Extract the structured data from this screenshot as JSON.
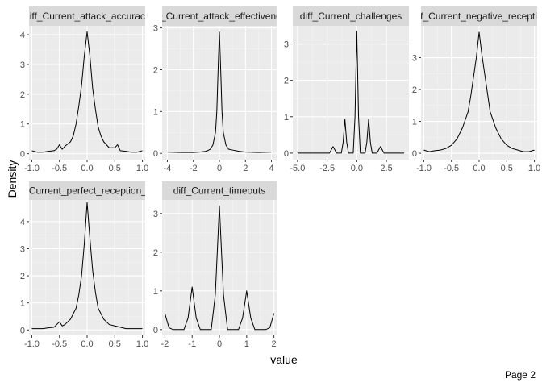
{
  "page": {
    "label": "Page 2"
  },
  "chart_data": {
    "type": "line",
    "xlabel": "value",
    "ylabel": "Density",
    "colors": {
      "panel_bg": "#ebebeb",
      "grid_major": "#ffffff",
      "strip_bg": "#d9d9d9",
      "line": "#000000"
    },
    "panels": [
      {
        "strip_label": "diff_Current_attack_accuracy",
        "xlim": [
          -1.05,
          1.05
        ],
        "ylim": [
          -0.2,
          4.3
        ],
        "xticks": [
          -1.0,
          -0.5,
          0.0,
          0.5,
          1.0
        ],
        "xtick_labels": [
          "-1.0",
          "-0.5",
          "0.0",
          "0.5",
          "1.0"
        ],
        "yticks": [
          0,
          1,
          2,
          3,
          4
        ],
        "ytick_labels": [
          "0",
          "1",
          "2",
          "3",
          "4"
        ],
        "x": [
          -1.0,
          -0.9,
          -0.8,
          -0.7,
          -0.6,
          -0.55,
          -0.5,
          -0.45,
          -0.4,
          -0.3,
          -0.25,
          -0.2,
          -0.15,
          -0.1,
          -0.05,
          0.0,
          0.05,
          0.1,
          0.15,
          0.2,
          0.25,
          0.3,
          0.4,
          0.5,
          0.55,
          0.6,
          0.7,
          0.8,
          0.9,
          1.0
        ],
        "y": [
          0.1,
          0.05,
          0.05,
          0.08,
          0.1,
          0.15,
          0.3,
          0.15,
          0.25,
          0.4,
          0.6,
          1.0,
          1.6,
          2.3,
          3.3,
          4.1,
          3.3,
          2.2,
          1.5,
          0.9,
          0.6,
          0.4,
          0.2,
          0.2,
          0.3,
          0.1,
          0.08,
          0.05,
          0.05,
          0.1
        ]
      },
      {
        "strip_label": "diff_Current_attack_effectiveness",
        "xlim": [
          -4.4,
          4.4
        ],
        "ylim": [
          -0.15,
          3.05
        ],
        "xticks": [
          -4,
          -2,
          0,
          2,
          4
        ],
        "xtick_labels": [
          "-4",
          "-2",
          "0",
          "2",
          "4"
        ],
        "yticks": [
          0,
          1,
          2,
          3
        ],
        "ytick_labels": [
          "0",
          "1",
          "2",
          "3"
        ],
        "x": [
          -4.0,
          -3.0,
          -2.0,
          -1.5,
          -1.0,
          -0.7,
          -0.5,
          -0.3,
          -0.2,
          -0.1,
          0.0,
          0.1,
          0.2,
          0.3,
          0.5,
          0.7,
          1.0,
          1.5,
          2.0,
          3.0,
          4.0
        ],
        "y": [
          0.03,
          0.02,
          0.02,
          0.03,
          0.05,
          0.1,
          0.2,
          0.5,
          1.0,
          2.0,
          2.9,
          2.0,
          1.0,
          0.5,
          0.2,
          0.1,
          0.08,
          0.05,
          0.03,
          0.02,
          0.03
        ]
      },
      {
        "strip_label": "diff_Current_challenges",
        "xlim": [
          -5.4,
          4.4
        ],
        "ylim": [
          -0.18,
          3.5
        ],
        "xticks": [
          -5.0,
          -2.5,
          0.0,
          2.5
        ],
        "xtick_labels": [
          "-5.0",
          "-2.5",
          "0.0",
          "2.5"
        ],
        "yticks": [
          0,
          1,
          2,
          3
        ],
        "ytick_labels": [
          "0",
          "1",
          "2",
          "3"
        ],
        "x": [
          -5.0,
          -3.0,
          -2.3,
          -2.0,
          -1.7,
          -1.3,
          -1.15,
          -1.0,
          -0.85,
          -0.7,
          -0.3,
          -0.15,
          0.0,
          0.15,
          0.3,
          0.7,
          0.85,
          1.0,
          1.15,
          1.3,
          1.7,
          2.0,
          2.3,
          3.0,
          4.0
        ],
        "y": [
          0.0,
          0.0,
          0.0,
          0.18,
          0.0,
          0.0,
          0.3,
          0.93,
          0.3,
          0.0,
          0.0,
          1.0,
          3.35,
          1.0,
          0.0,
          0.0,
          0.3,
          0.93,
          0.3,
          0.0,
          0.0,
          0.18,
          0.0,
          0.0,
          0.0
        ]
      },
      {
        "strip_label": "diff_Current_negative_reception",
        "xlim": [
          -1.05,
          1.05
        ],
        "ylim": [
          -0.2,
          4.0
        ],
        "xticks": [
          -1.0,
          -0.5,
          0.0,
          0.5,
          1.0
        ],
        "xtick_labels": [
          "-1.0",
          "-0.5",
          "0.0",
          "0.5",
          "1.0"
        ],
        "yticks": [
          0,
          1,
          2,
          3
        ],
        "ytick_labels": [
          "0",
          "1",
          "2",
          "3"
        ],
        "x": [
          -1.0,
          -0.9,
          -0.8,
          -0.7,
          -0.6,
          -0.5,
          -0.4,
          -0.3,
          -0.2,
          -0.15,
          -0.1,
          -0.05,
          0.0,
          0.05,
          0.1,
          0.15,
          0.2,
          0.3,
          0.4,
          0.5,
          0.6,
          0.7,
          0.8,
          0.9,
          1.0
        ],
        "y": [
          0.1,
          0.05,
          0.08,
          0.1,
          0.15,
          0.25,
          0.45,
          0.8,
          1.3,
          1.8,
          2.4,
          3.0,
          3.8,
          3.1,
          2.5,
          1.9,
          1.3,
          0.8,
          0.45,
          0.25,
          0.15,
          0.1,
          0.05,
          0.05,
          0.1
        ]
      },
      {
        "strip_label": "diff_Current_perfect_reception_rate",
        "xlim": [
          -1.05,
          1.05
        ],
        "ylim": [
          -0.2,
          4.8
        ],
        "xticks": [
          -1.0,
          -0.5,
          0.0,
          0.5,
          1.0
        ],
        "xtick_labels": [
          "-1.0",
          "-0.5",
          "0.0",
          "0.5",
          "1.0"
        ],
        "yticks": [
          0,
          1,
          2,
          3,
          4
        ],
        "ytick_labels": [
          "0",
          "1",
          "2",
          "3",
          "4"
        ],
        "x": [
          -1.0,
          -0.9,
          -0.8,
          -0.7,
          -0.6,
          -0.5,
          -0.45,
          -0.4,
          -0.3,
          -0.2,
          -0.15,
          -0.1,
          -0.05,
          0.0,
          0.05,
          0.1,
          0.15,
          0.2,
          0.3,
          0.4,
          0.5,
          0.6,
          0.7,
          0.8,
          0.9,
          1.0
        ],
        "y": [
          0.05,
          0.05,
          0.05,
          0.08,
          0.1,
          0.3,
          0.15,
          0.2,
          0.4,
          0.8,
          1.3,
          2.0,
          3.2,
          4.7,
          3.4,
          2.2,
          1.4,
          0.8,
          0.4,
          0.2,
          0.15,
          0.1,
          0.05,
          0.05,
          0.05,
          0.05
        ]
      },
      {
        "strip_label": "diff_Current_timeouts",
        "xlim": [
          -2.1,
          2.1
        ],
        "ylim": [
          -0.15,
          3.35
        ],
        "xticks": [
          -2,
          -1,
          0,
          1,
          2
        ],
        "xtick_labels": [
          "-2",
          "-1",
          "0",
          "1",
          "2"
        ],
        "yticks": [
          0,
          1,
          2,
          3
        ],
        "ytick_labels": [
          "0",
          "1",
          "2",
          "3"
        ],
        "x": [
          -2.0,
          -1.85,
          -1.7,
          -1.3,
          -1.15,
          -1.0,
          -0.85,
          -0.7,
          -0.3,
          -0.15,
          0.0,
          0.15,
          0.3,
          0.7,
          0.85,
          1.0,
          1.15,
          1.3,
          1.7,
          1.85,
          2.0
        ],
        "y": [
          0.42,
          0.05,
          0.0,
          0.0,
          0.3,
          1.1,
          0.3,
          0.0,
          0.0,
          0.9,
          3.2,
          0.9,
          0.0,
          0.0,
          0.3,
          1.0,
          0.3,
          0.0,
          0.0,
          0.05,
          0.42
        ]
      }
    ]
  }
}
